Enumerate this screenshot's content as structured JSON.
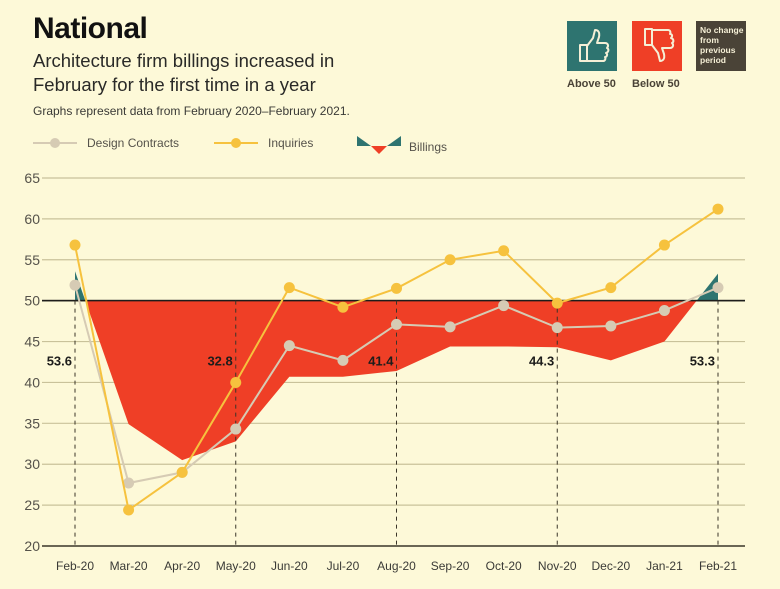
{
  "header": {
    "title": "National",
    "subtitle": "Architecture firm billings increased in February for the first time in a year",
    "note": "Graphs represent data from February 2020–February 2021."
  },
  "key": {
    "above": {
      "label": "Above 50",
      "icon": "thumbs-up-icon",
      "color": "#2e7470"
    },
    "below": {
      "label": "Below 50",
      "icon": "thumbs-down-icon",
      "color": "#ef3f26"
    },
    "no_change": {
      "label": "No change from previous period",
      "lines": [
        "No change",
        "from",
        "previous",
        "period"
      ],
      "color": "#4a4337"
    }
  },
  "legend": [
    {
      "name": "Design Contracts",
      "color": "#d6cbb4",
      "marker": "line-dot"
    },
    {
      "name": "Inquiries",
      "color": "#f6c23e",
      "marker": "line-dot"
    },
    {
      "name": "Billings",
      "color_above": "#2e7470",
      "color_below": "#ef3f26",
      "marker": "area"
    }
  ],
  "chart_data": {
    "type": "line",
    "title": "National",
    "xlabel": "",
    "ylabel": "",
    "ylim": [
      20,
      65
    ],
    "yticks": [
      20,
      25,
      30,
      35,
      40,
      45,
      50,
      55,
      60,
      65
    ],
    "baseline": 50,
    "grid": true,
    "legend_position": "top-left",
    "categories": [
      "Feb-20",
      "Mar-20",
      "Apr-20",
      "May-20",
      "Jun-20",
      "Jul-20",
      "Aug-20",
      "Sep-20",
      "Oct-20",
      "Nov-20",
      "Dec-20",
      "Jan-21",
      "Feb-21"
    ],
    "series": [
      {
        "name": "Billings",
        "type": "area",
        "values": [
          53.6,
          34.9,
          30.5,
          32.8,
          40.7,
          40.7,
          41.4,
          44.4,
          44.4,
          44.3,
          42.7,
          45.0,
          53.3
        ]
      },
      {
        "name": "Design Contracts",
        "type": "line",
        "values": [
          51.9,
          27.7,
          29.0,
          34.3,
          44.5,
          42.7,
          47.1,
          46.8,
          49.4,
          46.7,
          46.9,
          48.8,
          51.6
        ]
      },
      {
        "name": "Inquiries",
        "type": "line",
        "values": [
          56.8,
          24.4,
          29.0,
          40.0,
          51.6,
          49.2,
          51.5,
          55.0,
          56.1,
          49.7,
          51.6,
          56.8,
          61.2
        ]
      }
    ],
    "annotations": [
      {
        "category": "Feb-20",
        "text": "53.6"
      },
      {
        "category": "May-20",
        "text": "32.8"
      },
      {
        "category": "Aug-20",
        "text": "41.4"
      },
      {
        "category": "Nov-20",
        "text": "44.3"
      },
      {
        "category": "Feb-21",
        "text": "53.3"
      }
    ]
  }
}
